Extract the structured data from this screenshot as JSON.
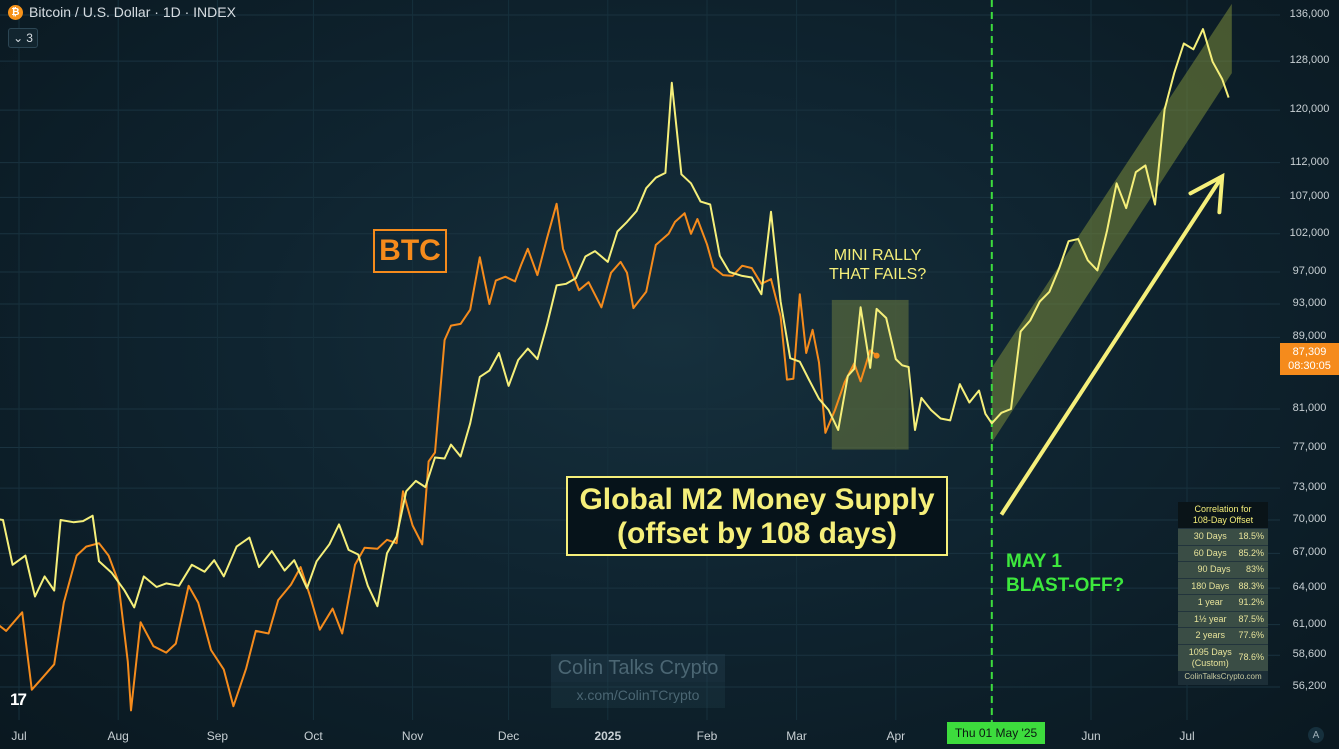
{
  "header": {
    "title": "Bitcoin / U.S. Dollar · 1D · INDEX",
    "indicator_count": "3",
    "badge_icon": "bitcoin-icon"
  },
  "annotations": {
    "btc_label": "BTC",
    "mini_rally_line1": "MINI RALLY",
    "mini_rally_line2": "THAT FAILS?",
    "m2_line1": "Global M2 Money Supply",
    "m2_line2": "(offset by 108 days)",
    "may_line1": "MAY 1",
    "may_line2": "BLAST-OFF?"
  },
  "watermark": {
    "name": "Colin Talks Crypto",
    "handle": "x.com/ColinTCrypto"
  },
  "price_tag": {
    "price": "87,309",
    "countdown": "08:30:05"
  },
  "date_tag": "Thu 01 May '25",
  "correlation": {
    "title_line1": "Correlation for",
    "title_line2": "108-Day Offset",
    "rows": [
      {
        "period": "30 Days",
        "value": "18.5%"
      },
      {
        "period": "60 Days",
        "value": "85.2%"
      },
      {
        "period": "90 Days",
        "value": "83%"
      },
      {
        "period": "180 Days",
        "value": "88.3%"
      },
      {
        "period": "1 year",
        "value": "91.2%"
      },
      {
        "period": "1½ year",
        "value": "87.5%"
      },
      {
        "period": "2 years",
        "value": "77.6%"
      }
    ],
    "custom_row": {
      "period_line1": "1095 Days",
      "period_line2": "(Custom)",
      "value": "78.6%"
    },
    "source": "ColinTalksCrypto.com"
  },
  "colors": {
    "btc": "#f58b1c",
    "m2": "#f5ef7a",
    "marker": "#3ddc3d",
    "channel": "#7a8a3a"
  },
  "chart_data": {
    "type": "line",
    "y_scale": "log",
    "ylim": [
      54500,
      140000
    ],
    "y_ticks": [
      "136,000",
      "128,000",
      "120,000",
      "112,000",
      "107,000",
      "102,000",
      "97,000",
      "93,000",
      "89,000",
      "81,000",
      "77,000",
      "73,000",
      "70,000",
      "67,000",
      "64,000",
      "61,000",
      "58,600",
      "56,200"
    ],
    "x_ticks": [
      {
        "label": "Jul",
        "date": "2024-07-01"
      },
      {
        "label": "Aug",
        "date": "2024-08-01"
      },
      {
        "label": "Sep",
        "date": "2024-09-01"
      },
      {
        "label": "Oct",
        "date": "2024-10-01"
      },
      {
        "label": "Nov",
        "date": "2024-11-01"
      },
      {
        "label": "Dec",
        "date": "2024-12-01"
      },
      {
        "label": "2025",
        "date": "2025-01-01",
        "bold": true
      },
      {
        "label": "Feb",
        "date": "2025-02-01"
      },
      {
        "label": "Mar",
        "date": "2025-03-01"
      },
      {
        "label": "Apr",
        "date": "2025-04-01"
      },
      {
        "label": "May",
        "date": "2025-05-01",
        "hidden": true
      },
      {
        "label": "Jun",
        "date": "2025-06-01"
      },
      {
        "label": "Jul",
        "date": "2025-07-01"
      }
    ],
    "vertical_marker_date": "2025-05-01",
    "series": [
      {
        "name": "BTC",
        "points": [
          [
            "2024-06-22",
            61500
          ],
          [
            "2024-06-27",
            60500
          ],
          [
            "2024-07-02",
            62000
          ],
          [
            "2024-07-05",
            56000
          ],
          [
            "2024-07-08",
            56800
          ],
          [
            "2024-07-12",
            57900
          ],
          [
            "2024-07-15",
            62800
          ],
          [
            "2024-07-19",
            66800
          ],
          [
            "2024-07-22",
            67600
          ],
          [
            "2024-07-26",
            67900
          ],
          [
            "2024-07-29",
            66800
          ],
          [
            "2024-08-01",
            64600
          ],
          [
            "2024-08-04",
            58100
          ],
          [
            "2024-08-05",
            54500
          ],
          [
            "2024-08-08",
            61200
          ],
          [
            "2024-08-12",
            59300
          ],
          [
            "2024-08-16",
            58800
          ],
          [
            "2024-08-19",
            59500
          ],
          [
            "2024-08-23",
            64200
          ],
          [
            "2024-08-26",
            62800
          ],
          [
            "2024-08-30",
            59000
          ],
          [
            "2024-09-03",
            57500
          ],
          [
            "2024-09-06",
            54800
          ],
          [
            "2024-09-10",
            57600
          ],
          [
            "2024-09-13",
            60500
          ],
          [
            "2024-09-17",
            60300
          ],
          [
            "2024-09-20",
            63000
          ],
          [
            "2024-09-24",
            64300
          ],
          [
            "2024-09-27",
            65800
          ],
          [
            "2024-09-30",
            63300
          ],
          [
            "2024-10-03",
            60600
          ],
          [
            "2024-10-07",
            62300
          ],
          [
            "2024-10-10",
            60300
          ],
          [
            "2024-10-14",
            66000
          ],
          [
            "2024-10-17",
            67500
          ],
          [
            "2024-10-21",
            67400
          ],
          [
            "2024-10-24",
            68200
          ],
          [
            "2024-10-27",
            67900
          ],
          [
            "2024-10-29",
            72700
          ],
          [
            "2024-11-01",
            69500
          ],
          [
            "2024-11-04",
            67800
          ],
          [
            "2024-11-06",
            75600
          ],
          [
            "2024-11-08",
            76500
          ],
          [
            "2024-11-11",
            88700
          ],
          [
            "2024-11-13",
            90400
          ],
          [
            "2024-11-16",
            90600
          ],
          [
            "2024-11-19",
            92300
          ],
          [
            "2024-11-22",
            98900
          ],
          [
            "2024-11-25",
            93000
          ],
          [
            "2024-11-27",
            95900
          ],
          [
            "2024-11-30",
            96400
          ],
          [
            "2024-12-03",
            95800
          ],
          [
            "2024-12-05",
            98000
          ],
          [
            "2024-12-07",
            100000
          ],
          [
            "2024-12-10",
            96600
          ],
          [
            "2024-12-13",
            101400
          ],
          [
            "2024-12-16",
            106100
          ],
          [
            "2024-12-18",
            100000
          ],
          [
            "2024-12-20",
            97800
          ],
          [
            "2024-12-23",
            94700
          ],
          [
            "2024-12-26",
            95700
          ],
          [
            "2024-12-30",
            92600
          ],
          [
            "2025-01-02",
            96900
          ],
          [
            "2025-01-05",
            98300
          ],
          [
            "2025-01-07",
            96900
          ],
          [
            "2025-01-09",
            92500
          ],
          [
            "2025-01-13",
            94500
          ],
          [
            "2025-01-16",
            100500
          ],
          [
            "2025-01-20",
            102000
          ],
          [
            "2025-01-22",
            103600
          ],
          [
            "2025-01-25",
            104800
          ],
          [
            "2025-01-27",
            102000
          ],
          [
            "2025-01-29",
            104000
          ],
          [
            "2025-02-01",
            100600
          ],
          [
            "2025-02-03",
            97600
          ],
          [
            "2025-02-06",
            96600
          ],
          [
            "2025-02-09",
            96500
          ],
          [
            "2025-02-12",
            97800
          ],
          [
            "2025-02-15",
            97500
          ],
          [
            "2025-02-18",
            95500
          ],
          [
            "2025-02-21",
            96100
          ],
          [
            "2025-02-24",
            91500
          ],
          [
            "2025-02-26",
            84200
          ],
          [
            "2025-02-28",
            84300
          ],
          [
            "2025-03-02",
            94200
          ],
          [
            "2025-03-04",
            87200
          ],
          [
            "2025-03-06",
            89900
          ],
          [
            "2025-03-08",
            86100
          ],
          [
            "2025-03-10",
            78500
          ],
          [
            "2025-03-13",
            80900
          ],
          [
            "2025-03-16",
            83900
          ],
          [
            "2025-03-19",
            86000
          ],
          [
            "2025-03-21",
            84000
          ],
          [
            "2025-03-24",
            87500
          ],
          [
            "2025-03-26",
            86900
          ]
        ]
      },
      {
        "name": "",
        "points": [
          [
            "2024-06-22",
            70200
          ],
          [
            "2024-06-26",
            70000
          ],
          [
            "2024-06-29",
            66000
          ],
          [
            "2024-07-03",
            66800
          ],
          [
            "2024-07-06",
            63300
          ],
          [
            "2024-07-09",
            65000
          ],
          [
            "2024-07-12",
            63800
          ],
          [
            "2024-07-14",
            70000
          ],
          [
            "2024-07-18",
            69800
          ],
          [
            "2024-07-21",
            69900
          ],
          [
            "2024-07-24",
            70400
          ],
          [
            "2024-07-26",
            66300
          ],
          [
            "2024-07-30",
            65300
          ],
          [
            "2024-08-03",
            63800
          ],
          [
            "2024-08-06",
            62400
          ],
          [
            "2024-08-09",
            65000
          ],
          [
            "2024-08-13",
            64100
          ],
          [
            "2024-08-16",
            64400
          ],
          [
            "2024-08-20",
            64200
          ],
          [
            "2024-08-24",
            66000
          ],
          [
            "2024-08-28",
            65400
          ],
          [
            "2024-08-31",
            66400
          ],
          [
            "2024-09-03",
            65000
          ],
          [
            "2024-09-07",
            67600
          ],
          [
            "2024-09-11",
            68400
          ],
          [
            "2024-09-14",
            65800
          ],
          [
            "2024-09-18",
            67200
          ],
          [
            "2024-09-22",
            65500
          ],
          [
            "2024-09-25",
            66400
          ],
          [
            "2024-09-29",
            64000
          ],
          [
            "2024-10-02",
            66300
          ],
          [
            "2024-10-06",
            67800
          ],
          [
            "2024-10-09",
            69600
          ],
          [
            "2024-10-12",
            67300
          ],
          [
            "2024-10-15",
            66900
          ],
          [
            "2024-10-18",
            64200
          ],
          [
            "2024-10-21",
            62500
          ],
          [
            "2024-10-24",
            67000
          ],
          [
            "2024-10-27",
            68500
          ],
          [
            "2024-10-30",
            72700
          ],
          [
            "2024-11-02",
            73700
          ],
          [
            "2024-11-05",
            73100
          ],
          [
            "2024-11-08",
            76000
          ],
          [
            "2024-11-11",
            75900
          ],
          [
            "2024-11-13",
            77300
          ],
          [
            "2024-11-16",
            76100
          ],
          [
            "2024-11-19",
            79500
          ],
          [
            "2024-11-22",
            84500
          ],
          [
            "2024-11-25",
            85200
          ],
          [
            "2024-11-28",
            87200
          ],
          [
            "2024-12-01",
            83500
          ],
          [
            "2024-12-04",
            86400
          ],
          [
            "2024-12-07",
            87700
          ],
          [
            "2024-12-10",
            86500
          ],
          [
            "2024-12-13",
            90500
          ],
          [
            "2024-12-16",
            95300
          ],
          [
            "2024-12-19",
            95500
          ],
          [
            "2024-12-22",
            96200
          ],
          [
            "2024-12-25",
            99000
          ],
          [
            "2024-12-28",
            99700
          ],
          [
            "2025-01-01",
            98300
          ],
          [
            "2025-01-04",
            102300
          ],
          [
            "2025-01-07",
            103600
          ],
          [
            "2025-01-10",
            105100
          ],
          [
            "2025-01-13",
            108300
          ],
          [
            "2025-01-16",
            109800
          ],
          [
            "2025-01-19",
            110500
          ],
          [
            "2025-01-21",
            124400
          ],
          [
            "2025-01-24",
            110300
          ],
          [
            "2025-01-27",
            109000
          ],
          [
            "2025-01-30",
            106400
          ],
          [
            "2025-02-02",
            106000
          ],
          [
            "2025-02-05",
            99100
          ],
          [
            "2025-02-08",
            97000
          ],
          [
            "2025-02-12",
            96500
          ],
          [
            "2025-02-15",
            96300
          ],
          [
            "2025-02-18",
            94200
          ],
          [
            "2025-02-21",
            105000
          ],
          [
            "2025-02-24",
            93300
          ],
          [
            "2025-02-27",
            86600
          ],
          [
            "2025-03-02",
            86200
          ],
          [
            "2025-03-05",
            84100
          ],
          [
            "2025-03-08",
            82100
          ],
          [
            "2025-03-11",
            80900
          ],
          [
            "2025-03-14",
            78800
          ],
          [
            "2025-03-17",
            84600
          ],
          [
            "2025-03-19",
            85400
          ],
          [
            "2025-03-21",
            92600
          ],
          [
            "2025-03-24",
            85500
          ],
          [
            "2025-03-26",
            92400
          ],
          [
            "2025-03-29",
            91300
          ],
          [
            "2025-04-01",
            86500
          ],
          [
            "2025-04-03",
            85800
          ],
          [
            "2025-04-05",
            85600
          ],
          [
            "2025-04-07",
            78800
          ],
          [
            "2025-04-09",
            82200
          ],
          [
            "2025-04-12",
            80900
          ],
          [
            "2025-04-15",
            80000
          ],
          [
            "2025-04-18",
            79800
          ],
          [
            "2025-04-21",
            83700
          ],
          [
            "2025-04-24",
            81700
          ],
          [
            "2025-04-27",
            83000
          ],
          [
            "2025-04-29",
            80500
          ],
          [
            "2025-05-01",
            79500
          ],
          [
            "2025-05-04",
            80600
          ],
          [
            "2025-05-07",
            81000
          ],
          [
            "2025-05-10",
            89700
          ],
          [
            "2025-05-13",
            91000
          ],
          [
            "2025-05-16",
            93300
          ],
          [
            "2025-05-19",
            94500
          ],
          [
            "2025-05-22",
            97400
          ],
          [
            "2025-05-25",
            101000
          ],
          [
            "2025-05-28",
            101300
          ],
          [
            "2025-05-31",
            98500
          ],
          [
            "2025-06-03",
            97200
          ],
          [
            "2025-06-06",
            102400
          ],
          [
            "2025-06-09",
            109000
          ],
          [
            "2025-06-12",
            105500
          ],
          [
            "2025-06-15",
            110600
          ],
          [
            "2025-06-18",
            111600
          ],
          [
            "2025-06-21",
            106000
          ],
          [
            "2025-06-24",
            120100
          ],
          [
            "2025-06-27",
            126000
          ],
          [
            "2025-06-30",
            131000
          ],
          [
            "2025-07-03",
            130000
          ],
          [
            "2025-07-06",
            133500
          ],
          [
            "2025-07-09",
            127900
          ],
          [
            "2025-07-12",
            125000
          ],
          [
            "2025-07-14",
            122000
          ]
        ]
      }
    ],
    "channel": {
      "upper": [
        [
          "2025-05-01",
          85500
        ],
        [
          "2025-07-15",
          138000
        ]
      ],
      "lower": [
        [
          "2025-05-01",
          77500
        ],
        [
          "2025-07-15",
          126000
        ]
      ]
    },
    "highlight_box": {
      "x0": "2025-03-12",
      "x1": "2025-04-05",
      "y0": 76800,
      "y1": 93500
    },
    "arrow": {
      "from": [
        "2025-05-04",
        70500
      ],
      "to": [
        "2025-07-12",
        110000
      ]
    }
  }
}
